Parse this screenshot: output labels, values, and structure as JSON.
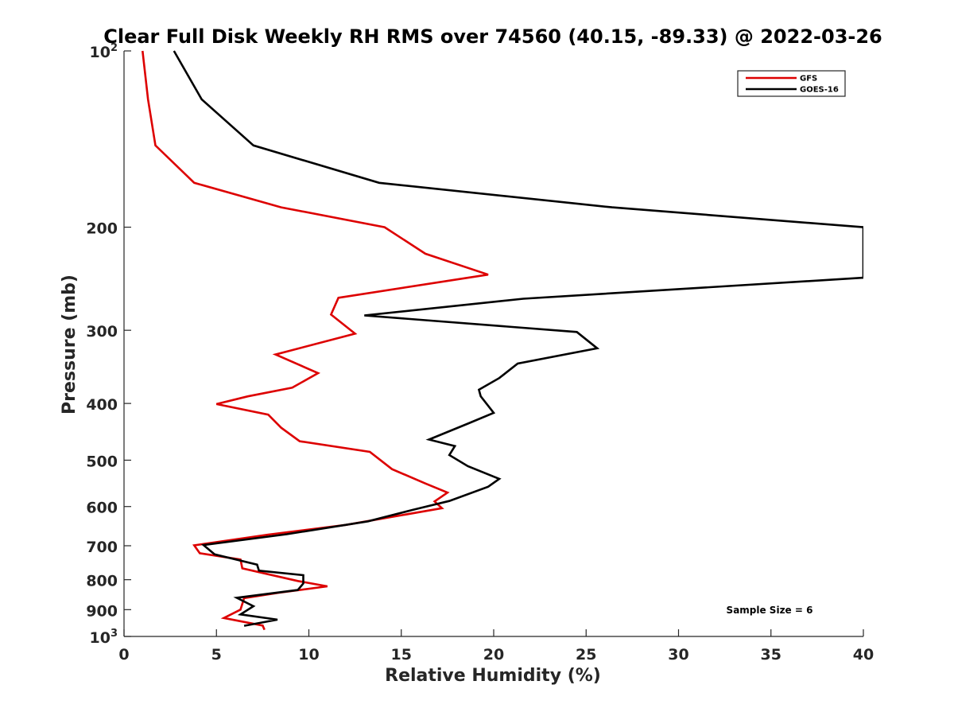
{
  "chart_data": {
    "type": "line",
    "title": "Clear Full Disk Weekly RH RMS over 74560 (40.15, -89.33) @ 2022-03-26",
    "xlabel": "Relative Humidity (%)",
    "ylabel": "Pressure (mb)",
    "xlim": [
      0,
      40
    ],
    "ylim": [
      100,
      1000
    ],
    "y_scale": "log",
    "y_reversed": true,
    "grid": false,
    "legend_position": "top-right",
    "x_ticks": [
      {
        "value": 0,
        "label": "0"
      },
      {
        "value": 5,
        "label": "5"
      },
      {
        "value": 10,
        "label": "10"
      },
      {
        "value": 15,
        "label": "15"
      },
      {
        "value": 20,
        "label": "20"
      },
      {
        "value": 25,
        "label": "25"
      },
      {
        "value": 30,
        "label": "30"
      },
      {
        "value": 35,
        "label": "35"
      },
      {
        "value": 40,
        "label": "40"
      }
    ],
    "y_ticks": [
      {
        "value": 100,
        "base": "10",
        "sup": "2"
      },
      {
        "value": 200,
        "base": "200",
        "sup": ""
      },
      {
        "value": 300,
        "base": "300",
        "sup": ""
      },
      {
        "value": 400,
        "base": "400",
        "sup": ""
      },
      {
        "value": 500,
        "base": "500",
        "sup": ""
      },
      {
        "value": 600,
        "base": "600",
        "sup": ""
      },
      {
        "value": 700,
        "base": "700",
        "sup": ""
      },
      {
        "value": 800,
        "base": "800",
        "sup": ""
      },
      {
        "value": 900,
        "base": "900",
        "sup": ""
      },
      {
        "value": 1000,
        "base": "10",
        "sup": "3"
      }
    ],
    "annotation": "Sample Size = 6",
    "series": [
      {
        "name": "GFS",
        "color": "#dd0000",
        "x": [
          1.0,
          1.3,
          1.7,
          3.8,
          8.5,
          14.1,
          16.3,
          19.7,
          11.6,
          11.2,
          12.5,
          8.2,
          10.5,
          9.1,
          6.7,
          5.0,
          7.8,
          8.5,
          9.5,
          13.3,
          14.5,
          16.3,
          17.5,
          16.8,
          17.2,
          12.0,
          7.8,
          3.8,
          4.1,
          6.3,
          6.4,
          9.4,
          11.0,
          8.4,
          6.5,
          6.3,
          5.4,
          7.5,
          7.6
        ],
        "y": [
          100,
          121,
          145,
          168,
          185,
          200,
          222,
          241,
          264,
          282,
          304,
          330,
          355,
          376,
          389,
          401,
          418,
          440,
          464,
          484,
          518,
          548,
          568,
          588,
          604,
          645,
          670,
          699,
          721,
          739,
          765,
          804,
          821,
          842,
          860,
          900,
          930,
          958,
          974
        ]
      },
      {
        "name": "GOES-16",
        "color": "#000000",
        "x": [
          2.7,
          4.2,
          7.0,
          13.8,
          26.4,
          40.0,
          40.0,
          21.6,
          13.0,
          24.5,
          25.6,
          21.3,
          20.3,
          19.2,
          19.3,
          20.0,
          18.6,
          16.5,
          17.9,
          17.6,
          18.6,
          20.3,
          19.7,
          17.6,
          15.6,
          13.2,
          8.8,
          4.3,
          4.9,
          7.2,
          7.3,
          9.7,
          9.7,
          9.4,
          6.1,
          7.0,
          6.3,
          8.3,
          6.5
        ],
        "y": [
          100,
          121,
          145,
          168,
          185,
          200,
          244,
          265,
          283,
          302,
          322,
          342,
          362,
          379,
          389,
          415,
          433,
          461,
          473,
          490,
          512,
          538,
          555,
          587,
          608,
          636,
          669,
          698,
          724,
          754,
          772,
          786,
          812,
          833,
          859,
          888,
          917,
          936,
          959
        ]
      }
    ]
  }
}
